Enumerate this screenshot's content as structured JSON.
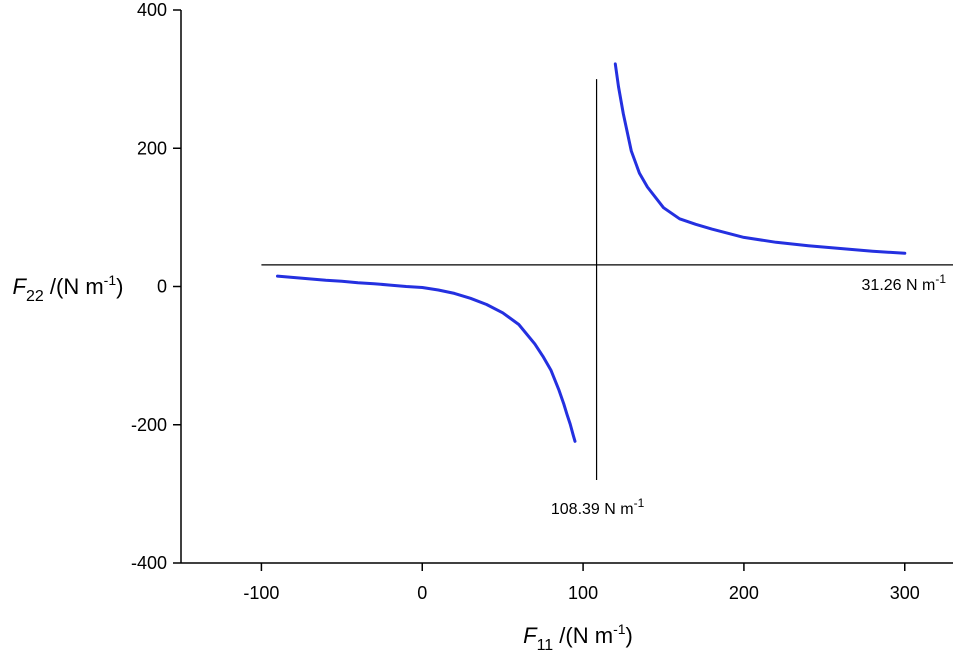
{
  "chart_data": {
    "type": "line",
    "xlabel": {
      "symbol": "F",
      "subscript": "11",
      "unit": " /(N m",
      "sup": "-1",
      "close": ")"
    },
    "ylabel": {
      "symbol": "F",
      "subscript": "22",
      "unit": " /(N m",
      "sup": "-1",
      "close": ")"
    },
    "xlim": [
      -150,
      330
    ],
    "ylim": [
      -400,
      400
    ],
    "x_ticks": [
      -100,
      0,
      100,
      200,
      300
    ],
    "y_ticks": [
      -400,
      -200,
      0,
      200,
      400
    ],
    "x_tick_labels": [
      "-100",
      "0",
      "100",
      "200",
      "300"
    ],
    "y_tick_labels": [
      "-400",
      "-200",
      "0",
      "200",
      "400"
    ],
    "asymptotes": {
      "vertical": {
        "x": 108.39,
        "y_range": [
          -280,
          300
        ],
        "label": "108.39 N m",
        "label_sup": "-1"
      },
      "horizontal": {
        "y": 31.26,
        "x_range": [
          -100,
          330
        ],
        "label": "31.26 N m",
        "label_sup": "-1"
      }
    },
    "series": [
      {
        "color": "#2430e0",
        "branches": [
          {
            "x": [
              -90,
              -80,
              -70,
              -60,
              -50,
              -40,
              -30,
              -20,
              -10,
              0,
              10,
              20,
              30,
              40,
              50,
              60,
              70,
              75,
              80,
              85,
              88,
              90,
              92,
              94,
              95
            ],
            "y": [
              15,
              13,
              11,
              9,
              7.5,
              5.5,
              4,
              2,
              0,
              -1.5,
              -5,
              -10,
              -17,
              -26,
              -38,
              -55,
              -83,
              -101,
              -121,
              -150,
              -170,
              -185,
              -199,
              -216,
              -224
            ]
          },
          {
            "x": [
              120,
              122,
              125,
              130,
              135,
              140,
              150,
              160,
              170,
              180,
              200,
              220,
              240,
              260,
              280,
              300
            ],
            "y": [
              322,
              289,
              250,
              196,
              164,
              144,
              114,
              98,
              90,
              83,
              71,
              64,
              59,
              55,
              51,
              48
            ]
          }
        ]
      }
    ]
  }
}
